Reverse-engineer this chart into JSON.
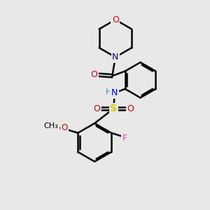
{
  "background_color": "#e8e8e8",
  "atom_colors": {
    "C": "#000000",
    "N": "#0000cc",
    "O": "#dd0000",
    "S": "#cccc00",
    "F": "#dd44aa",
    "H": "#448888"
  },
  "bond_color": "#000000",
  "bond_width": 1.8
}
